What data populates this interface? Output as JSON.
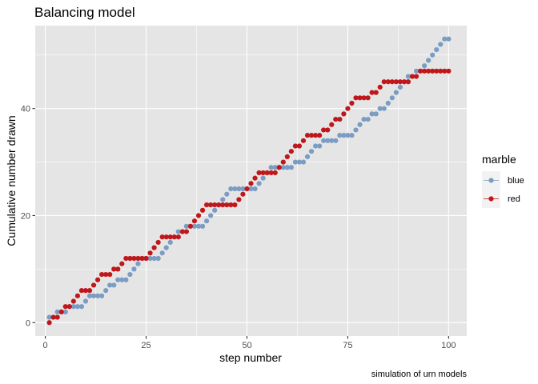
{
  "chart_data": {
    "type": "scatter",
    "title": "Balancing model",
    "xlabel": "step number",
    "ylabel": "Cumulative number drawn",
    "caption": "simulation of urn models",
    "xlim": [
      -2.5,
      104.5
    ],
    "ylim": [
      -2.5,
      55.5
    ],
    "x_ticks": [
      0,
      25,
      50,
      75,
      100
    ],
    "y_ticks": [
      0,
      20,
      40
    ],
    "x_tick_labels": [
      "0",
      "25",
      "50",
      "75",
      "100"
    ],
    "y_tick_labels": [
      "0",
      "20",
      "40"
    ],
    "grid": true,
    "panel_background": "#e5e5e5",
    "grid_color": "#ffffff",
    "legend": {
      "title": "marble",
      "position": "right",
      "entries": [
        {
          "label": "blue",
          "color": "#7b9cc3"
        },
        {
          "label": "red",
          "color": "#c0171b"
        }
      ]
    },
    "series": [
      {
        "name": "blue",
        "color": "#7b9cc3",
        "x": [
          1,
          2,
          3,
          4,
          5,
          6,
          7,
          8,
          9,
          10,
          11,
          12,
          13,
          14,
          15,
          16,
          17,
          18,
          19,
          20,
          21,
          22,
          23,
          24,
          25,
          26,
          27,
          28,
          29,
          30,
          31,
          32,
          33,
          34,
          35,
          36,
          37,
          38,
          39,
          40,
          41,
          42,
          43,
          44,
          45,
          46,
          47,
          48,
          49,
          50,
          51,
          52,
          53,
          54,
          55,
          56,
          57,
          58,
          59,
          60,
          61,
          62,
          63,
          64,
          65,
          66,
          67,
          68,
          69,
          70,
          71,
          72,
          73,
          74,
          75,
          76,
          77,
          78,
          79,
          80,
          81,
          82,
          83,
          84,
          85,
          86,
          87,
          88,
          89,
          90,
          91,
          92,
          93,
          94,
          95,
          96,
          97,
          98,
          99,
          100
        ],
        "y": [
          1,
          1,
          2,
          2,
          2,
          3,
          3,
          3,
          3,
          4,
          5,
          5,
          5,
          5,
          6,
          7,
          7,
          8,
          8,
          8,
          9,
          10,
          11,
          12,
          12,
          12,
          12,
          12,
          13,
          14,
          15,
          16,
          17,
          17,
          18,
          18,
          18,
          18,
          18,
          19,
          20,
          21,
          22,
          23,
          24,
          25,
          25,
          25,
          25,
          25,
          25,
          25,
          26,
          27,
          28,
          29,
          29,
          29,
          29,
          29,
          29,
          30,
          30,
          30,
          31,
          32,
          33,
          33,
          34,
          34,
          34,
          34,
          35,
          35,
          35,
          35,
          36,
          37,
          38,
          38,
          39,
          39,
          40,
          40,
          41,
          42,
          43,
          44,
          45,
          46,
          46,
          47,
          47,
          48,
          49,
          50,
          51,
          52,
          53,
          53
        ]
      },
      {
        "name": "red",
        "color": "#c0171b",
        "x": [
          1,
          2,
          3,
          4,
          5,
          6,
          7,
          8,
          9,
          10,
          11,
          12,
          13,
          14,
          15,
          16,
          17,
          18,
          19,
          20,
          21,
          22,
          23,
          24,
          25,
          26,
          27,
          28,
          29,
          30,
          31,
          32,
          33,
          34,
          35,
          36,
          37,
          38,
          39,
          40,
          41,
          42,
          43,
          44,
          45,
          46,
          47,
          48,
          49,
          50,
          51,
          52,
          53,
          54,
          55,
          56,
          57,
          58,
          59,
          60,
          61,
          62,
          63,
          64,
          65,
          66,
          67,
          68,
          69,
          70,
          71,
          72,
          73,
          74,
          75,
          76,
          77,
          78,
          79,
          80,
          81,
          82,
          83,
          84,
          85,
          86,
          87,
          88,
          89,
          90,
          91,
          92,
          93,
          94,
          95,
          96,
          97,
          98,
          99,
          100
        ],
        "y": [
          0,
          1,
          1,
          2,
          3,
          3,
          4,
          5,
          6,
          6,
          6,
          7,
          8,
          9,
          9,
          9,
          10,
          10,
          11,
          12,
          12,
          12,
          12,
          12,
          12,
          13,
          14,
          15,
          16,
          16,
          16,
          16,
          16,
          17,
          17,
          18,
          19,
          20,
          21,
          22,
          22,
          22,
          22,
          22,
          22,
          22,
          22,
          23,
          24,
          25,
          26,
          27,
          28,
          28,
          28,
          28,
          28,
          29,
          30,
          31,
          32,
          33,
          33,
          34,
          35,
          35,
          35,
          35,
          36,
          36,
          37,
          38,
          38,
          39,
          40,
          41,
          42,
          42,
          42,
          42,
          43,
          43,
          44,
          45,
          45,
          45,
          45,
          45,
          45,
          45,
          46,
          46,
          47,
          47,
          47,
          47,
          47,
          47,
          47,
          47
        ]
      }
    ]
  }
}
